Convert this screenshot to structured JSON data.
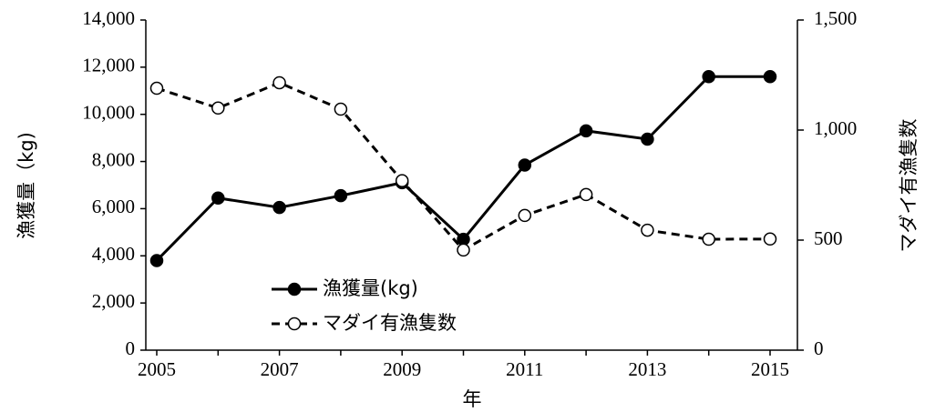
{
  "chart_data": {
    "type": "line",
    "x_label": "年",
    "y_label": "漁獲量（kg)",
    "y2_label": "マダイ有漁隻数",
    "categories": [
      "2005",
      null,
      "2007",
      null,
      "2009",
      null,
      "2011",
      null,
      "2013",
      null,
      "2015"
    ],
    "ylim": [
      0,
      14000
    ],
    "yticks": [
      0,
      {
        "value": 2000,
        "label": "2,000"
      },
      {
        "value": 4000,
        "label": "4,000"
      },
      {
        "value": 6000,
        "label": "6,000"
      },
      {
        "value": 8000,
        "label": "8,000"
      },
      {
        "value": 10000,
        "label": "10,000"
      },
      {
        "value": 12000,
        "label": "12,000"
      },
      {
        "value": 14000,
        "label": "14,000"
      }
    ],
    "y2lim": [
      0,
      1500
    ],
    "y2ticks": [
      0,
      500,
      {
        "value": 1000,
        "label": "1,000"
      },
      {
        "value": 1500,
        "label": "1,500"
      }
    ],
    "legend": "bottom-left",
    "series": [
      {
        "name": "漁獲量(kg)",
        "color": "#000000",
        "marker": "filled",
        "dashed": false,
        "axis": "y",
        "values": [
          3800,
          6450,
          6050,
          6550,
          7100,
          4700,
          7850,
          9300,
          8950,
          11600,
          11600
        ]
      },
      {
        "name": "マダイ有漁隻数",
        "color": "#000000",
        "marker": "open",
        "dashed": true,
        "axis": "y2",
        "values": [
          1190,
          1100,
          1215,
          1095,
          770,
          455,
          612,
          707,
          545,
          504,
          505
        ]
      }
    ]
  }
}
